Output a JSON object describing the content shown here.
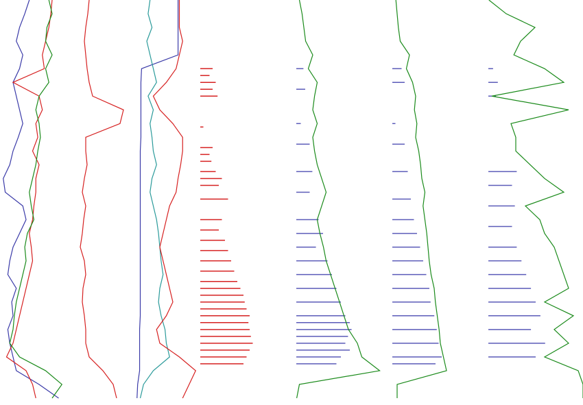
{
  "chart_data": [
    {
      "type": "line",
      "ylim": [
        0,
        590
      ],
      "xlim": [
        0,
        100
      ],
      "y": [
        0,
        20,
        40,
        60,
        80,
        100,
        120,
        140,
        160,
        180,
        200,
        220,
        240,
        260,
        280,
        300,
        320,
        340,
        360,
        380,
        400,
        420,
        440,
        460,
        480,
        500,
        520,
        540,
        560,
        580
      ],
      "series": [
        {
          "color": "#3a3aa8",
          "values": [
            45,
            38,
            30,
            25,
            35,
            30,
            20,
            25,
            30,
            35,
            28,
            20,
            15,
            5,
            8,
            35,
            40,
            30,
            20,
            15,
            12,
            25,
            18,
            20,
            12,
            15,
            20,
            25,
            60,
            90
          ]
        },
        {
          "color": "#d62020",
          "values": [
            80,
            78,
            75,
            70,
            65,
            68,
            20,
            60,
            65,
            55,
            58,
            50,
            60,
            55,
            55,
            52,
            50,
            45,
            48,
            50,
            45,
            40,
            35,
            30,
            25,
            20,
            10,
            40,
            50,
            55
          ]
        },
        {
          "color": "#1a8a1a",
          "values": [
            75,
            80,
            72,
            70,
            80,
            70,
            75,
            60,
            55,
            60,
            62,
            58,
            55,
            50,
            45,
            48,
            52,
            42,
            38,
            40,
            35,
            30,
            25,
            22,
            20,
            15,
            30,
            70,
            95,
            80
          ]
        }
      ]
    },
    {
      "type": "line",
      "ylim": [
        0,
        590
      ],
      "xlim": [
        0,
        100
      ],
      "y": [
        0,
        20,
        40,
        60,
        80,
        100,
        120,
        140,
        160,
        180,
        200,
        220,
        240,
        260,
        280,
        300,
        320,
        340,
        360,
        380,
        400,
        420,
        440,
        460,
        480,
        500,
        520,
        540,
        560,
        580
      ],
      "series": [
        {
          "color": "#d62020",
          "values": [
            35,
            33,
            30,
            28,
            30,
            32,
            35,
            40,
            85,
            80,
            30,
            30,
            32,
            28,
            25,
            30,
            27,
            25,
            22,
            28,
            30,
            26,
            25,
            28,
            30,
            30,
            35,
            55,
            70,
            75
          ]
        }
      ]
    },
    {
      "type": "line",
      "ylim": [
        0,
        590
      ],
      "xlim": [
        0,
        100
      ],
      "y": [
        0,
        20,
        40,
        60,
        80,
        100,
        120,
        140,
        160,
        180,
        200,
        220,
        240,
        260,
        280,
        300,
        320,
        340,
        360,
        380,
        400,
        420,
        440,
        460,
        480,
        500,
        520,
        540,
        560,
        580
      ],
      "series": [
        {
          "color": "#3a3aa8",
          "values": [
            68,
            68,
            68,
            68,
            68,
            12,
            11,
            11,
            11,
            11,
            11,
            10,
            10,
            10,
            10,
            10,
            10,
            10,
            10,
            10,
            10,
            10,
            10,
            10,
            9,
            9,
            9,
            9,
            6,
            5
          ]
        },
        {
          "color": "#2a9a9a",
          "values": [
            25,
            22,
            28,
            20,
            25,
            30,
            35,
            22,
            30,
            25,
            28,
            30,
            35,
            28,
            25,
            30,
            35,
            38,
            40,
            42,
            45,
            40,
            38,
            42,
            48,
            50,
            55,
            30,
            15,
            10
          ]
        },
        {
          "color": "#d62020",
          "values": [
            70,
            70,
            70,
            75,
            70,
            65,
            50,
            30,
            40,
            60,
            75,
            75,
            72,
            68,
            65,
            55,
            50,
            45,
            40,
            45,
            50,
            55,
            60,
            50,
            35,
            40,
            70,
            95,
            85,
            75
          ]
        }
      ]
    },
    {
      "type": "bar",
      "ylim": [
        0,
        590
      ],
      "xlim": [
        0,
        100
      ],
      "color": "#d62020",
      "y": [
        100,
        110,
        120,
        130,
        140,
        185,
        215,
        225,
        235,
        250,
        260,
        270,
        290,
        320,
        335,
        350,
        365,
        380,
        395,
        410,
        420,
        430,
        440,
        450,
        460,
        470,
        480,
        490,
        500,
        510,
        520,
        530
      ],
      "values": [
        20,
        15,
        25,
        20,
        28,
        5,
        20,
        15,
        18,
        25,
        35,
        30,
        45,
        35,
        30,
        40,
        45,
        50,
        55,
        60,
        65,
        70,
        72,
        75,
        80,
        78,
        80,
        82,
        85,
        80,
        75,
        70
      ]
    },
    {
      "type": "bar",
      "ylim": [
        0,
        590
      ],
      "xlim": [
        0,
        100
      ],
      "color": "#5a5ab8",
      "y": [
        100,
        130,
        180,
        210,
        250,
        280,
        320,
        340,
        360,
        380,
        400,
        420,
        440,
        460,
        470,
        480,
        490,
        500,
        510,
        520,
        530
      ],
      "values": [
        8,
        10,
        5,
        15,
        18,
        15,
        25,
        30,
        22,
        35,
        40,
        45,
        50,
        55,
        60,
        62,
        58,
        55,
        60,
        50,
        45
      ]
    },
    {
      "type": "line",
      "ylim": [
        0,
        590
      ],
      "xlim": [
        0,
        100
      ],
      "y": [
        0,
        20,
        40,
        60,
        80,
        100,
        120,
        140,
        160,
        180,
        200,
        220,
        240,
        260,
        280,
        300,
        320,
        340,
        360,
        380,
        400,
        420,
        440,
        460,
        480,
        500,
        520,
        540,
        560,
        580
      ],
      "series": [
        {
          "color": "#1a8a1a",
          "values": [
            5,
            8,
            10,
            12,
            20,
            15,
            25,
            22,
            20,
            25,
            20,
            22,
            25,
            30,
            35,
            30,
            25,
            28,
            32,
            35,
            40,
            45,
            50,
            55,
            60,
            70,
            75,
            95,
            5,
            2
          ]
        }
      ]
    },
    {
      "type": "bar",
      "ylim": [
        0,
        590
      ],
      "xlim": [
        0,
        100
      ],
      "color": "#5a5ab8",
      "y": [
        100,
        120,
        180,
        210,
        250,
        290,
        320,
        340,
        360,
        380,
        400,
        420,
        440,
        460,
        480,
        500,
        520,
        530
      ],
      "values": [
        15,
        20,
        5,
        20,
        25,
        30,
        35,
        40,
        45,
        50,
        55,
        60,
        62,
        68,
        72,
        75,
        80,
        70
      ]
    },
    {
      "type": "line",
      "ylim": [
        0,
        590
      ],
      "xlim": [
        0,
        100
      ],
      "y": [
        0,
        20,
        40,
        60,
        80,
        100,
        120,
        140,
        160,
        180,
        200,
        220,
        240,
        260,
        280,
        300,
        320,
        340,
        360,
        380,
        400,
        420,
        440,
        460,
        480,
        500,
        520,
        540,
        560,
        580
      ],
      "series": [
        {
          "color": "#1a8a1a",
          "values": [
            8,
            10,
            12,
            15,
            30,
            25,
            35,
            40,
            38,
            42,
            40,
            45,
            48,
            50,
            55,
            52,
            55,
            58,
            60,
            62,
            65,
            70,
            72,
            75,
            78,
            80,
            85,
            90,
            10,
            10
          ]
        }
      ]
    },
    {
      "type": "bar",
      "ylim": [
        0,
        590
      ],
      "xlim": [
        0,
        100
      ],
      "color": "#5a5ab8",
      "y": [
        100,
        120,
        140,
        250,
        270,
        300,
        330,
        360,
        380,
        400,
        420,
        440,
        460,
        480,
        500,
        520
      ],
      "values": [
        5,
        10,
        8,
        30,
        25,
        28,
        25,
        30,
        35,
        40,
        45,
        50,
        55,
        45,
        60,
        50
      ]
    },
    {
      "type": "line",
      "ylim": [
        0,
        590
      ],
      "xlim": [
        0,
        100
      ],
      "y": [
        0,
        20,
        40,
        60,
        80,
        100,
        120,
        140,
        160,
        180,
        200,
        220,
        240,
        260,
        280,
        300,
        320,
        340,
        360,
        380,
        400,
        420,
        440,
        460,
        480,
        500,
        520,
        540,
        560,
        580
      ],
      "series": [
        {
          "color": "#1a8a1a",
          "values": [
            2,
            20,
            50,
            35,
            28,
            60,
            80,
            5,
            85,
            25,
            30,
            30,
            45,
            60,
            80,
            40,
            55,
            60,
            70,
            75,
            80,
            85,
            60,
            90,
            70,
            85,
            60,
            95,
            100,
            100
          ]
        }
      ]
    }
  ]
}
